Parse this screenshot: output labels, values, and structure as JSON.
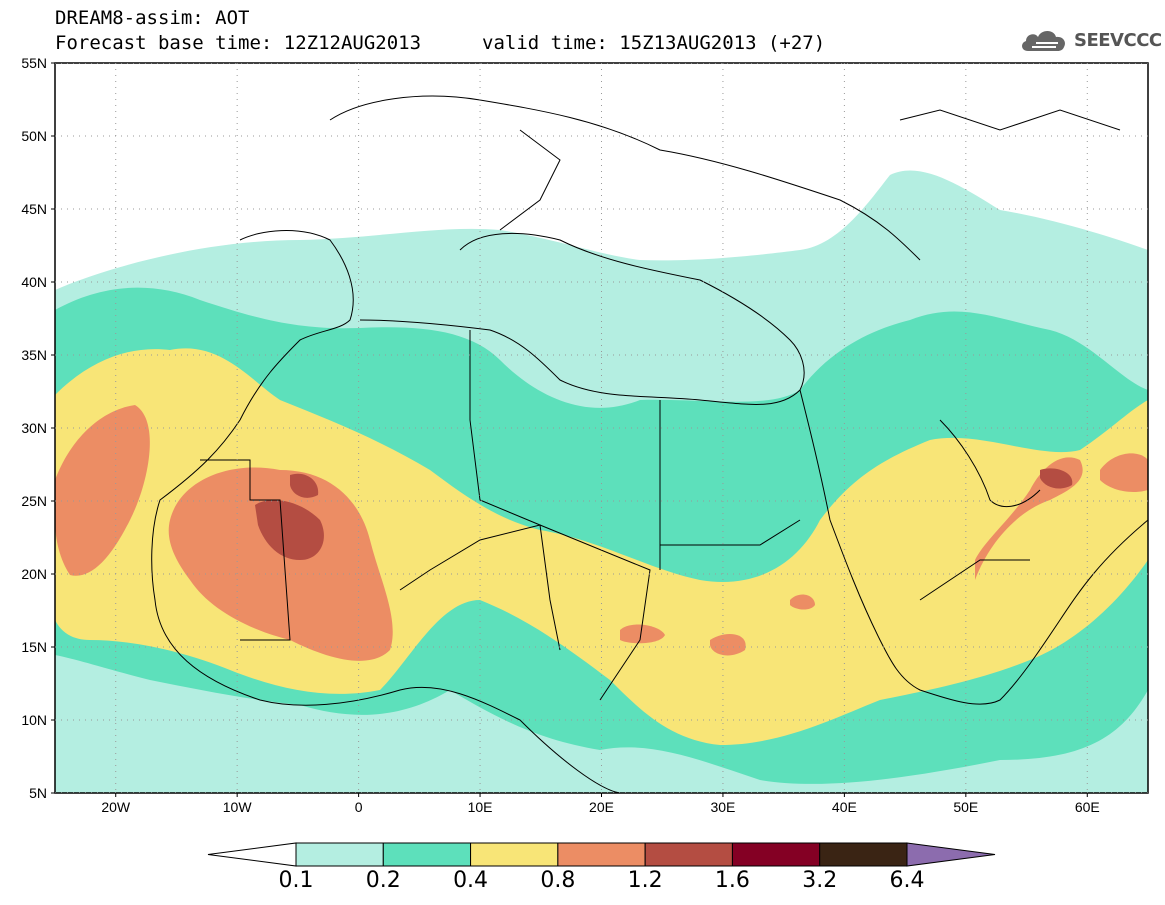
{
  "header": {
    "title": "DREAM8-assim: AOT",
    "base_time": "Forecast base time: 12Z12AUG2013",
    "valid_time": "valid time: 15Z13AUG2013 (+27)"
  },
  "logo": {
    "text": "SEEVCCC",
    "icon": "cloud-logo-icon"
  },
  "map": {
    "lon_range": [
      -25,
      65
    ],
    "lat_range": [
      5,
      55
    ],
    "lat_ticks": [
      "55N",
      "50N",
      "45N",
      "40N",
      "35N",
      "30N",
      "25N",
      "20N",
      "15N",
      "10N",
      "5N"
    ],
    "lon_ticks": [
      "20W",
      "10W",
      "0",
      "10E",
      "20E",
      "30E",
      "40E",
      "50E",
      "60E"
    ],
    "grid": "dotted"
  },
  "colorbar": {
    "labels": [
      "0.1",
      "0.2",
      "0.4",
      "0.8",
      "1.2",
      "1.6",
      "3.2",
      "6.4"
    ],
    "colors": [
      "#ffffff",
      "#b4eee1",
      "#5de0bb",
      "#f8e577",
      "#ec8d64",
      "#b44d42",
      "#840024",
      "#3a2414",
      "#8c6cae"
    ]
  }
}
